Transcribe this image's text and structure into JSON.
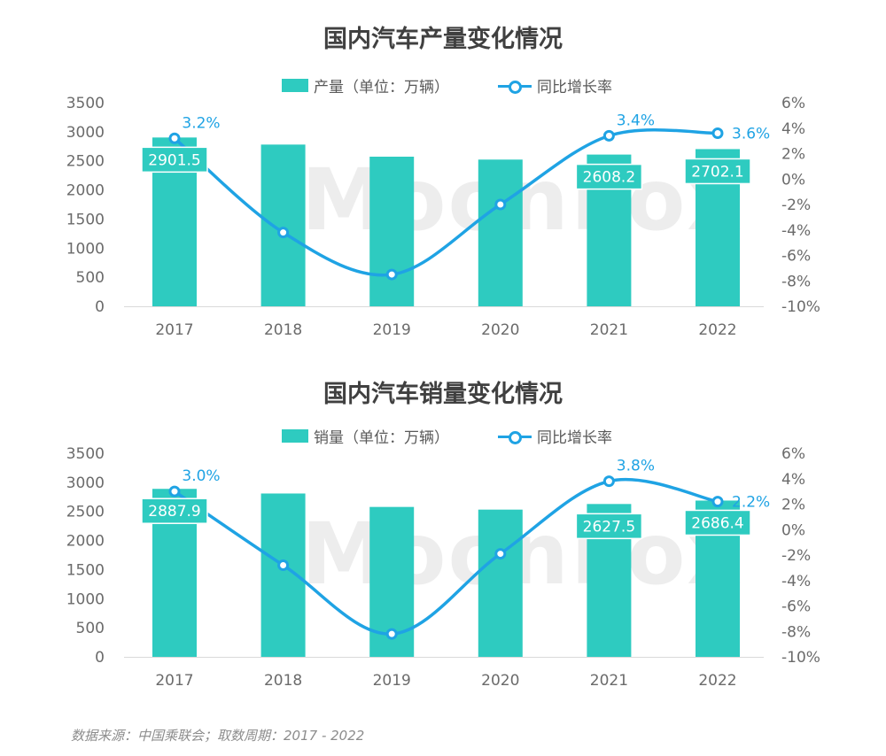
{
  "chart_data": [
    {
      "type": "bar+line",
      "title": "国内汽车产量变化情况",
      "categories": [
        "2017",
        "2018",
        "2019",
        "2020",
        "2021",
        "2022"
      ],
      "series": [
        {
          "name": "产量（单位：万辆）",
          "type": "bar",
          "axis": "left",
          "values": [
            2901.5,
            2780,
            2572,
            2522,
            2608.2,
            2702.1
          ],
          "labels": [
            "2901.5",
            "",
            "",
            "",
            "2608.2",
            "2702.1"
          ]
        },
        {
          "name": "同比增长率",
          "type": "line",
          "axis": "right",
          "values": [
            3.2,
            -4.2,
            -7.5,
            -2.0,
            3.4,
            3.6
          ],
          "labels": [
            "3.2%",
            "",
            "",
            "",
            "3.4%",
            "3.6%"
          ]
        }
      ],
      "left_axis": {
        "ylim": [
          0,
          3500
        ],
        "ticks": [
          "0",
          "500",
          "1000",
          "1500",
          "2000",
          "2500",
          "3000",
          "3500"
        ]
      },
      "right_axis": {
        "ylim": [
          -10,
          6
        ],
        "ticks": [
          "-10%",
          "-8%",
          "-6%",
          "-4%",
          "-2%",
          "0%",
          "2%",
          "4%",
          "6%"
        ]
      },
      "grid": false,
      "legend_position": "top-center"
    },
    {
      "type": "bar+line",
      "title": "国内汽车销量变化情况",
      "categories": [
        "2017",
        "2018",
        "2019",
        "2020",
        "2021",
        "2022"
      ],
      "series": [
        {
          "name": "销量（单位：万辆）",
          "type": "bar",
          "axis": "left",
          "values": [
            2887.9,
            2808,
            2577,
            2531,
            2627.5,
            2686.4
          ],
          "labels": [
            "2887.9",
            "",
            "",
            "",
            "2627.5",
            "2686.4"
          ]
        },
        {
          "name": "同比增长率",
          "type": "line",
          "axis": "right",
          "values": [
            3.0,
            -2.8,
            -8.2,
            -1.9,
            3.8,
            2.2
          ],
          "labels": [
            "3.0%",
            "",
            "",
            "",
            "3.8%",
            "2.2%"
          ]
        }
      ],
      "left_axis": {
        "ylim": [
          0,
          3500
        ],
        "ticks": [
          "0",
          "500",
          "1000",
          "1500",
          "2000",
          "2500",
          "3000",
          "3500"
        ]
      },
      "right_axis": {
        "ylim": [
          -10,
          6
        ],
        "ticks": [
          "-10%",
          "-8%",
          "-6%",
          "-4%",
          "-2%",
          "0%",
          "2%",
          "4%",
          "6%"
        ]
      },
      "grid": false,
      "legend_position": "top-center"
    }
  ],
  "colors": {
    "bar": "#2ECBC0",
    "line": "#1FA3E4",
    "label_bg": "#2ECBC0",
    "axis_text": "#6B6B6B"
  },
  "watermark": "MoonFox",
  "source": "数据来源：中国乘联会；取数周期：2017 - 2022"
}
